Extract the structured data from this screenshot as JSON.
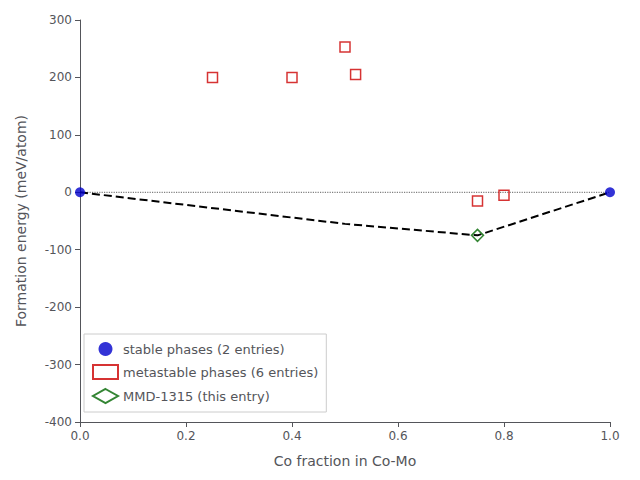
{
  "chart_data": {
    "type": "scatter",
    "xlabel": "Co fraction in Co-Mo",
    "ylabel": "Formation energy (meV/atom)",
    "xlim": [
      0.0,
      1.0
    ],
    "ylim": [
      -400,
      300
    ],
    "xticks": [
      {
        "value": 0.0,
        "label": "0.0"
      },
      0.2,
      0.4,
      0.6,
      0.8,
      {
        "value": 1.0,
        "label": "1.0"
      }
    ],
    "yticks": [
      -400,
      -300,
      -200,
      -100,
      0,
      100,
      200,
      300
    ],
    "grid": false,
    "legend": "lower left",
    "series": [
      {
        "type": "line",
        "line_style": "dotted",
        "color": "gray",
        "x": [
          0.0,
          1.0
        ],
        "values": [
          0.0,
          0.0
        ]
      },
      {
        "type": "line",
        "line_style": "dashed",
        "color": "black",
        "x": [
          0.0,
          0.5,
          0.75,
          1.0
        ],
        "values": [
          0.0,
          -55,
          -75,
          0.0
        ]
      },
      {
        "type": "scatter",
        "name": "stable phases (2 entries)",
        "marker": "circle",
        "color": "#0000cc",
        "x": [
          0.0,
          1.0
        ],
        "values": [
          0.0,
          0.0
        ]
      },
      {
        "type": "scatter",
        "name": "metastable phases (6 entries)",
        "marker": "hollow-square",
        "color": "#cc0000",
        "x": [
          0.25,
          0.4,
          0.5,
          0.52,
          0.75,
          0.8
        ],
        "values": [
          200,
          200,
          253,
          205,
          -15,
          -5
        ]
      },
      {
        "type": "scatter",
        "name": "MMD-1315 (this entry)",
        "marker": "hollow-diamond",
        "color": "#006600",
        "x": [
          0.75
        ],
        "values": [
          -75
        ]
      }
    ]
  }
}
